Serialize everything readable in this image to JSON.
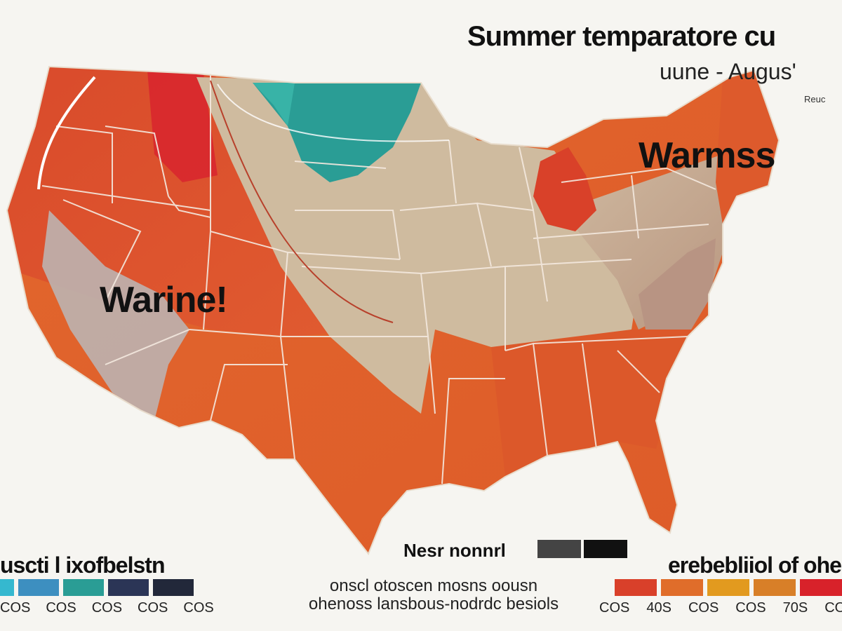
{
  "title": "Summer temparatore cu",
  "subtitle": "uune - Augus'",
  "credit": "Reuc",
  "regions": {
    "west_label": "Warine!",
    "east_label": "Warmss"
  },
  "legend": {
    "cool_title": "uscti l ixofbelstn",
    "warm_title": "erebebliiol of ohe",
    "normal_title": "Nesr nonnrl",
    "cool_colors": [
      "#35b8cf",
      "#3d8fc0",
      "#2a9d95",
      "#2b3556",
      "#22283a"
    ],
    "warm_colors": [
      "#d9402a",
      "#e06d2a",
      "#e29a1f",
      "#d87f28",
      "#d8222a"
    ],
    "normal_colors": [
      "#444444",
      "#111111"
    ],
    "cool_ticks": [
      "COS",
      "COS",
      "COS",
      "COS",
      "COS"
    ],
    "warm_ticks": [
      "COS",
      "40S",
      "COS",
      "COS",
      "70S",
      "COS"
    ]
  },
  "footnote": {
    "line1": "onscl otoscen mosns oousn",
    "line2": "ohenoss lansbous-nodrdc besiols"
  }
}
